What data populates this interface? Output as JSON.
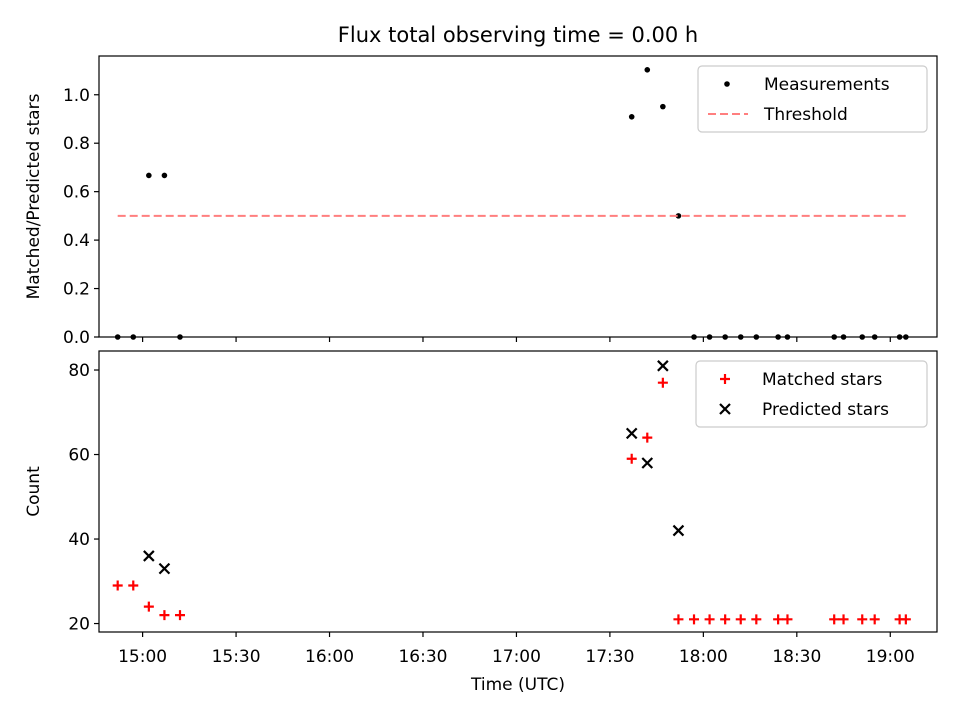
{
  "chart_data": {
    "type": "scatter",
    "title": "Flux total observing time = 0.00 h",
    "xlabel": "Time (UTC)",
    "x_ticks": [
      "15:00",
      "15:30",
      "16:00",
      "16:30",
      "17:00",
      "17:30",
      "18:00",
      "18:30",
      "19:00"
    ],
    "x_range": [
      "14:46",
      "19:15"
    ],
    "panels": [
      {
        "ylabel": "Matched/Predicted stars",
        "ylim": [
          0,
          1.16
        ],
        "y_ticks": [
          "0.0",
          "0.2",
          "0.4",
          "0.6",
          "0.8",
          "1.0"
        ],
        "legend_position": "upper right",
        "series": [
          {
            "name": "Measurements",
            "marker": "dot",
            "color": "#000000",
            "points": [
              [
                "14:52",
                0.0
              ],
              [
                "14:57",
                0.0
              ],
              [
                "15:02",
                0.667
              ],
              [
                "15:07",
                0.667
              ],
              [
                "15:12",
                0.0
              ],
              [
                "17:37",
                0.909
              ],
              [
                "17:42",
                1.103
              ],
              [
                "17:47",
                0.951
              ],
              [
                "17:52",
                0.5
              ],
              [
                "17:57",
                0.0
              ],
              [
                "18:02",
                0.0
              ],
              [
                "18:07",
                0.0
              ],
              [
                "18:12",
                0.0
              ],
              [
                "18:17",
                0.0
              ],
              [
                "18:24",
                0.0
              ],
              [
                "18:27",
                0.0
              ],
              [
                "18:42",
                0.0
              ],
              [
                "18:45",
                0.0
              ],
              [
                "18:51",
                0.0
              ],
              [
                "18:55",
                0.0
              ],
              [
                "19:03",
                0.0
              ],
              [
                "19:05",
                0.0
              ]
            ]
          },
          {
            "name": "Threshold",
            "style": "dashed-line",
            "color": "#ff7f7f",
            "points": [
              [
                "14:52",
                0.5
              ],
              [
                "19:05",
                0.5
              ]
            ]
          }
        ]
      },
      {
        "ylabel": "Count",
        "ylim": [
          18,
          84.5
        ],
        "y_ticks": [
          "20",
          "40",
          "60",
          "80"
        ],
        "legend_position": "upper right",
        "series": [
          {
            "name": "Matched stars",
            "marker": "plus",
            "color": "#ff0000",
            "points": [
              [
                "14:52",
                29
              ],
              [
                "14:57",
                29
              ],
              [
                "15:02",
                24
              ],
              [
                "15:07",
                22
              ],
              [
                "15:12",
                22
              ],
              [
                "17:37",
                59
              ],
              [
                "17:42",
                64
              ],
              [
                "17:47",
                77
              ],
              [
                "17:52",
                21
              ],
              [
                "17:57",
                21
              ],
              [
                "18:02",
                21
              ],
              [
                "18:07",
                21
              ],
              [
                "18:12",
                21
              ],
              [
                "18:17",
                21
              ],
              [
                "18:24",
                21
              ],
              [
                "18:27",
                21
              ],
              [
                "18:42",
                21
              ],
              [
                "18:45",
                21
              ],
              [
                "18:51",
                21
              ],
              [
                "18:55",
                21
              ],
              [
                "19:03",
                21
              ],
              [
                "19:05",
                21
              ]
            ]
          },
          {
            "name": "Predicted stars",
            "marker": "x",
            "color": "#000000",
            "points": [
              [
                "15:02",
                36
              ],
              [
                "15:07",
                33
              ],
              [
                "17:37",
                65
              ],
              [
                "17:42",
                58
              ],
              [
                "17:47",
                81
              ],
              [
                "17:52",
                42
              ]
            ]
          }
        ]
      }
    ]
  }
}
